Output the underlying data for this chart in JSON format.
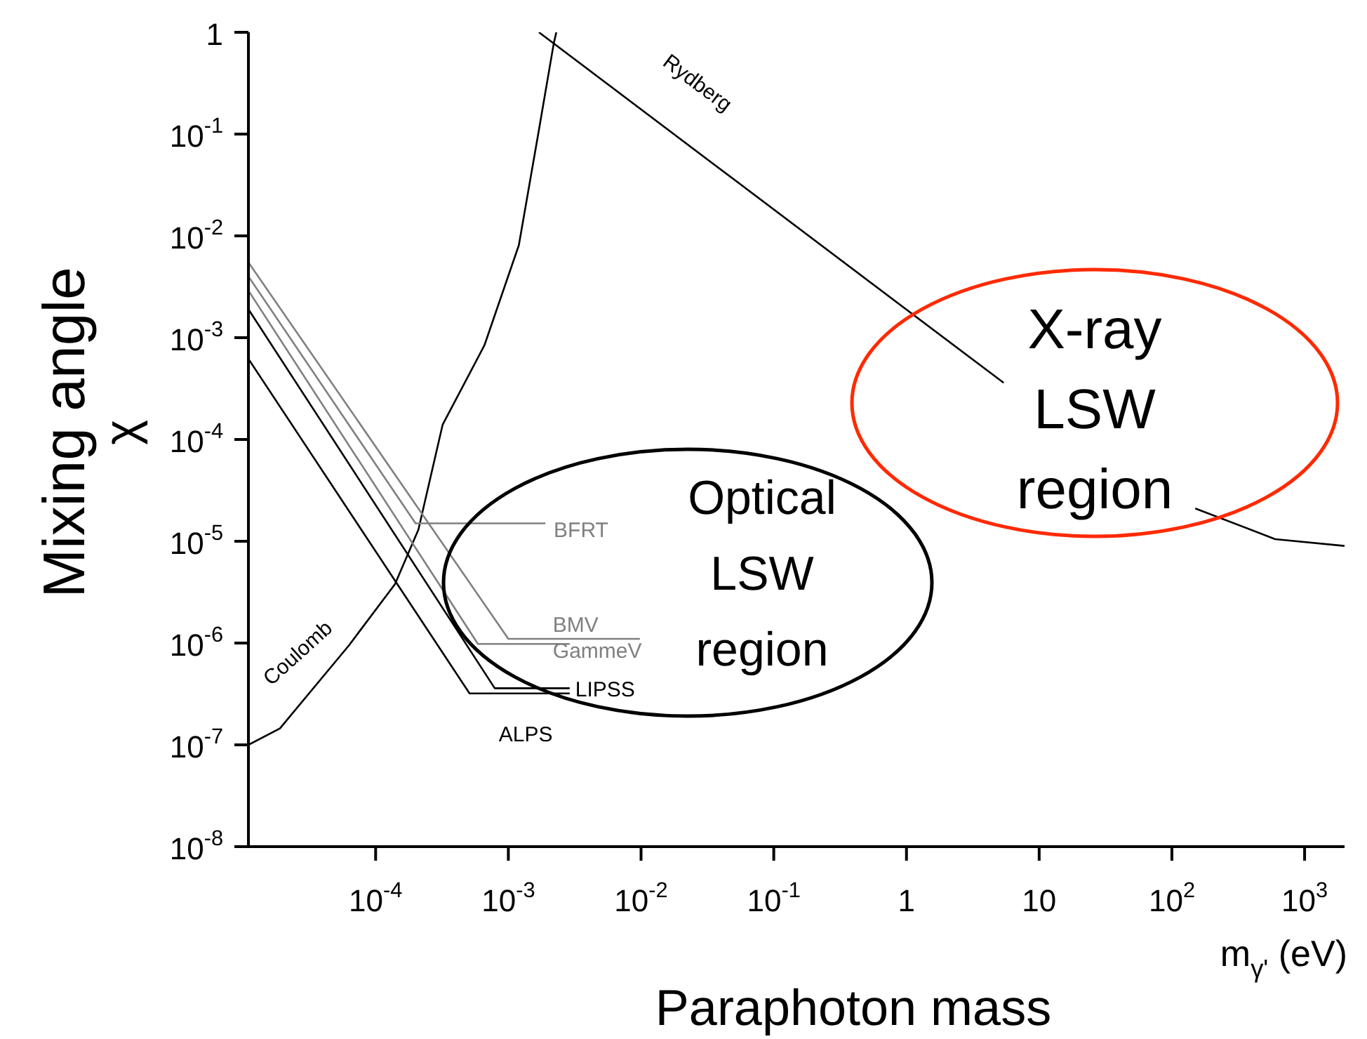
{
  "chart_data": {
    "type": "line",
    "xlabel": "m$_{γ'}$ (eV)",
    "ylabel": "Mixing angle\nχ",
    "log": "xy",
    "marker": "none",
    "line_style": "solid",
    "xlim": [
      1.1e-05,
      2000
    ],
    "ylim": [
      1e-08,
      1
    ],
    "xticks": [
      {
        "value": 0.0001,
        "label": "10$^{-4}$"
      },
      {
        "value": 0.001,
        "label": "10$^{-3}$"
      },
      {
        "value": 0.01,
        "label": "10$^{-2}$"
      },
      {
        "value": 0.1,
        "label": "10$^{-1}$"
      },
      1,
      10,
      {
        "value": 100,
        "label": "10$^{2}$"
      },
      {
        "value": 1000,
        "label": "10$^{3}$"
      }
    ],
    "yticks": [
      {
        "value": 1e-08,
        "label": "10$^{-8}$"
      },
      {
        "value": 1e-07,
        "label": "10$^{-7}$"
      },
      {
        "value": 1e-06,
        "label": "10$^{-6}$"
      },
      {
        "value": 1e-05,
        "label": "10$^{-5}$"
      },
      {
        "value": 0.0001,
        "label": "10$^{-4}$"
      },
      {
        "value": 0.001,
        "label": "10$^{-3}$"
      },
      {
        "value": 0.01,
        "label": "10$^{-2}$"
      },
      {
        "value": 0.1,
        "label": "10$^{-1}$"
      },
      1
    ],
    "series": [
      {
        "name": "Coulomb",
        "color": "#000000",
        "x": [
          1.1e-05,
          1.9e-05,
          6.3e-05,
          0.00014,
          0.00021,
          0.00032,
          0.00066,
          0.0012,
          0.0017,
          0.0022,
          0.0023
        ],
        "values": [
          1e-07,
          1.45e-07,
          9.5e-07,
          3.8e-06,
          1.3e-05,
          0.00014,
          0.00084,
          0.0081,
          0.11,
          0.78,
          1
        ]
      },
      {
        "name": "Rydberg",
        "color": "#000000",
        "x": [
          0.0017,
          5.4,
          20,
          150,
          600,
          2000
        ],
        "values": [
          1,
          0.00036,
          null,
          2.1e-05,
          1.05e-05,
          9e-06
        ]
      },
      {
        "name": "BFRT",
        "color": "#808080",
        "x": [
          1.1e-05,
          0.0002,
          0.0019
        ],
        "values": [
          0.004,
          1.5e-05,
          1.5e-05
        ]
      },
      {
        "name": "BMV",
        "color": "#808080",
        "x": [
          1.1e-05,
          0.001,
          0.0098
        ],
        "values": [
          0.0055,
          1.1e-06,
          1.1e-06
        ]
      },
      {
        "name": "GammeV",
        "color": "#808080",
        "x": [
          1.1e-05,
          0.00059,
          0.0029
        ],
        "values": [
          0.0029,
          9.8e-07,
          9.8e-07
        ]
      },
      {
        "name": "LIPSS",
        "color": "#000000",
        "x": [
          1.1e-05,
          0.00079,
          0.0029
        ],
        "values": [
          0.0019,
          3.6e-07,
          3.6e-07
        ]
      },
      {
        "name": "ALPS",
        "color": "#000000",
        "x": [
          1.1e-05,
          0.00051,
          0.0029
        ],
        "values": [
          0.00062,
          3.2e-07,
          3.2e-07
        ]
      }
    ],
    "annotations": [
      "Optical\nLSW\nregion",
      "X-ray\nLSW\nregion",
      "Paraphoton mass"
    ]
  }
}
